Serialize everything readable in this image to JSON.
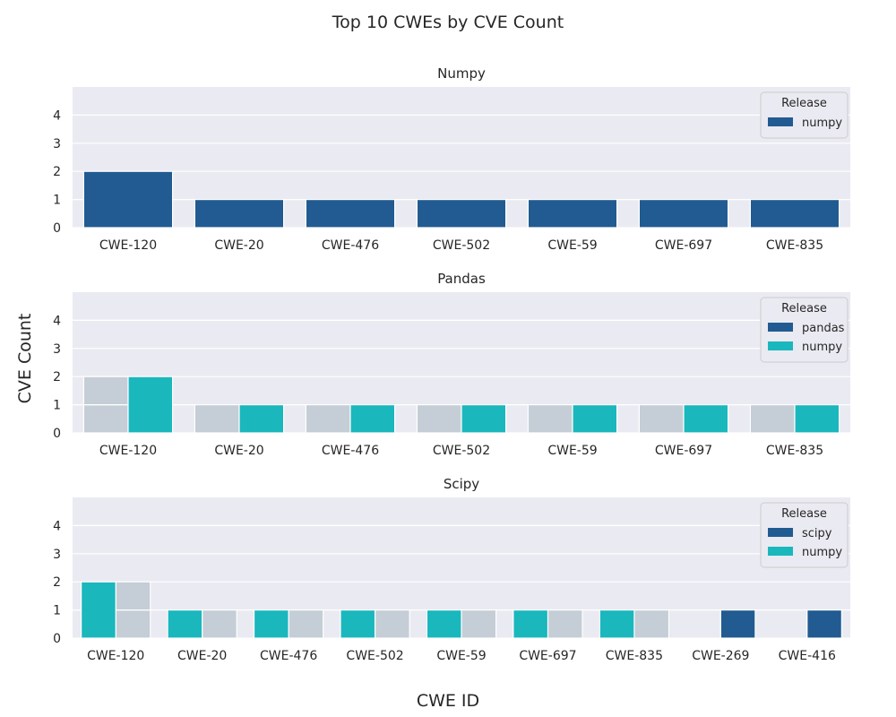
{
  "chart_data": {
    "type": "bar",
    "title": "Top 10 CWEs by CVE Count",
    "xlabel": "CWE ID",
    "ylabel": "CVE Count",
    "colors": {
      "numpy_dark": "#215b91",
      "teal": "#1ab7bd",
      "ghost": "#c5ced6",
      "background": "#eaeaf2",
      "grid": "#ffffff"
    },
    "panels": [
      {
        "title": "Numpy",
        "ylim": [
          0,
          5
        ],
        "yticks": [
          0,
          1,
          2,
          3,
          4
        ],
        "legend_title": "Release",
        "legend_placement": "top-right",
        "categories": [
          "CWE-120",
          "CWE-20",
          "CWE-476",
          "CWE-502",
          "CWE-59",
          "CWE-697",
          "CWE-835"
        ],
        "series": [
          {
            "name": "numpy",
            "color": "#215b91",
            "legend": true,
            "values": [
              2,
              1,
              1,
              1,
              1,
              1,
              1
            ]
          }
        ]
      },
      {
        "title": "Pandas",
        "ylim": [
          0,
          5
        ],
        "yticks": [
          0,
          1,
          2,
          3,
          4
        ],
        "legend_title": "Release",
        "legend_placement": "top-right",
        "categories": [
          "CWE-120",
          "CWE-20",
          "CWE-476",
          "CWE-502",
          "CWE-59",
          "CWE-697",
          "CWE-835"
        ],
        "series": [
          {
            "name": "pandas",
            "color": "#215b91",
            "legend": true,
            "values": [
              0,
              0,
              0,
              0,
              0,
              0,
              0
            ]
          },
          {
            "name": "numpy",
            "color": "#1ab7bd",
            "legend": true,
            "values": [
              2,
              1,
              1,
              1,
              1,
              1,
              1
            ]
          }
        ],
        "ghost": {
          "series": 0,
          "values": [
            2,
            1,
            1,
            1,
            1,
            1,
            1
          ]
        }
      },
      {
        "title": "Scipy",
        "ylim": [
          0,
          5
        ],
        "yticks": [
          0,
          1,
          2,
          3,
          4
        ],
        "legend_title": "Release",
        "legend_placement": "top-right",
        "categories": [
          "CWE-120",
          "CWE-20",
          "CWE-476",
          "CWE-502",
          "CWE-59",
          "CWE-697",
          "CWE-835",
          "CWE-269",
          "CWE-416"
        ],
        "series": [
          {
            "name": "numpy",
            "color": "#1ab7bd",
            "legend": true,
            "values": [
              2,
              1,
              1,
              1,
              1,
              1,
              1,
              0,
              0
            ]
          },
          {
            "name": "scipy",
            "color": "#215b91",
            "legend": true,
            "values": [
              0,
              0,
              0,
              0,
              0,
              0,
              0,
              1,
              1
            ]
          }
        ],
        "legend_order": [
          1,
          0
        ],
        "ghost": {
          "series": 1,
          "values": [
            2,
            1,
            1,
            1,
            1,
            1,
            1,
            1,
            1
          ]
        }
      }
    ]
  }
}
